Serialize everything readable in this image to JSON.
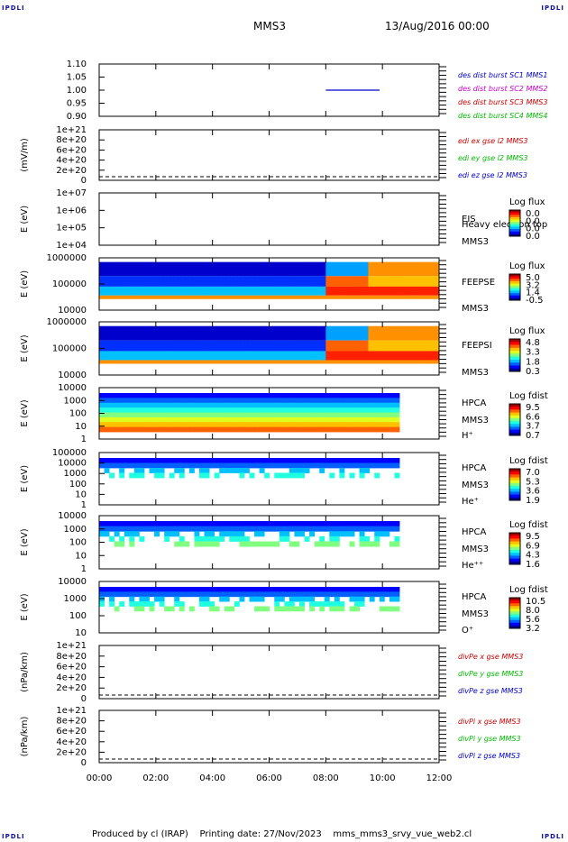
{
  "corners": {
    "tl": "IPDLI",
    "tr": "IPDLI",
    "bl": "IPDLI",
    "br": "IPDLI"
  },
  "header": {
    "spacecraft": "MMS3",
    "datetime": "13/Aug/2016 00:00"
  },
  "footer": {
    "text": "Produced by cl (IRAP)    Printing date: 27/Nov/2023    mms_mms3_srvy_vue_web2.cl"
  },
  "chart_data": [
    {
      "id": "dist",
      "type": "line",
      "ylabel": "",
      "yticks": [
        "1.10",
        "1.05",
        "1.00",
        "0.95",
        "0.90"
      ],
      "ylim": [
        0.9,
        1.1
      ],
      "series": [
        {
          "name": "des dist burst SC1 MMS1",
          "color": "#0000cc",
          "x": [
            8.0,
            9.9
          ],
          "y": [
            1.0,
            1.0
          ]
        },
        {
          "name": "des dist burst SC2 MMS2",
          "color": "#cc00cc",
          "x": [],
          "y": []
        },
        {
          "name": "des dist burst SC3 MMS3",
          "color": "#cc0000",
          "x": [],
          "y": []
        },
        {
          "name": "des dist burst SC4 MMS4",
          "color": "#00bb00",
          "x": [],
          "y": []
        }
      ]
    },
    {
      "id": "edi",
      "type": "line",
      "ylabel": "(mV/m)",
      "yticks": [
        "1e+21",
        "8e+20",
        "6e+20",
        "4e+20",
        "2e+20",
        "0"
      ],
      "series": [
        {
          "name": "edi ex gse l2 MMS3",
          "color": "#cc0000"
        },
        {
          "name": "edi ey gse l2 MMS3",
          "color": "#00bb00"
        },
        {
          "name": "edi ez gse l2 MMS3",
          "color": "#0000cc"
        }
      ]
    },
    {
      "id": "eis",
      "type": "heatmap",
      "ylabel": "E (eV)",
      "yticks": [
        "1e+07",
        "1e+06",
        "1e+05",
        "1e+04"
      ],
      "labels": [
        "EIS",
        "Heavy electron top",
        "MMS3"
      ],
      "colorbar": {
        "title": "Log flux",
        "ticks": [
          "0.0",
          "0.0",
          "0.0",
          "0.0"
        ]
      }
    },
    {
      "id": "feepse",
      "type": "heatmap",
      "ylabel": "E (eV)",
      "yticks": [
        "1000000",
        "100000",
        "10000"
      ],
      "labels": [
        "FEEPSE",
        "MMS3"
      ],
      "colorbar": {
        "title": "Log flux",
        "ticks": [
          "5.0",
          "3.2",
          "1.4",
          "-0.5"
        ]
      }
    },
    {
      "id": "feepsi",
      "type": "heatmap",
      "ylabel": "E (eV)",
      "yticks": [
        "1000000",
        "100000",
        "10000"
      ],
      "labels": [
        "FEEPSI",
        "MMS3"
      ],
      "colorbar": {
        "title": "Log flux",
        "ticks": [
          "4.8",
          "3.3",
          "1.8",
          "0.3"
        ]
      }
    },
    {
      "id": "hpca_h",
      "type": "heatmap",
      "ylabel": "E (eV)",
      "yticks": [
        "10000",
        "1000",
        "100",
        "10",
        "1"
      ],
      "labels": [
        "HPCA",
        "MMS3",
        "H⁺"
      ],
      "colorbar": {
        "title": "Log fdist",
        "ticks": [
          "9.5",
          "6.6",
          "3.7",
          "0.7"
        ]
      }
    },
    {
      "id": "hpca_he",
      "type": "heatmap",
      "ylabel": "E (eV)",
      "yticks": [
        "100000",
        "10000",
        "1000",
        "100",
        "10",
        "1"
      ],
      "labels": [
        "HPCA",
        "MMS3",
        "He⁺"
      ],
      "colorbar": {
        "title": "Log fdist",
        "ticks": [
          "7.0",
          "5.3",
          "3.6",
          "1.9"
        ]
      }
    },
    {
      "id": "hpca_hepp",
      "type": "heatmap",
      "ylabel": "E (eV)",
      "yticks": [
        "10000",
        "1000",
        "100",
        "10",
        "1"
      ],
      "labels": [
        "HPCA",
        "MMS3",
        "He⁺⁺"
      ],
      "colorbar": {
        "title": "Log fdist",
        "ticks": [
          "9.5",
          "6.9",
          "4.3",
          "1.6"
        ]
      }
    },
    {
      "id": "hpca_o",
      "type": "heatmap",
      "ylabel": "E (eV)",
      "yticks": [
        "10000",
        "1000",
        "100",
        "10"
      ],
      "labels": [
        "HPCA",
        "MMS3",
        "O⁺"
      ],
      "colorbar": {
        "title": "Log fdist",
        "ticks": [
          "10.5",
          "8.0",
          "5.6",
          "3.2"
        ]
      }
    },
    {
      "id": "divpe",
      "type": "line",
      "ylabel": "(nPa/km)",
      "yticks": [
        "1e+21",
        "8e+20",
        "6e+20",
        "4e+20",
        "2e+20",
        "0"
      ],
      "series": [
        {
          "name": "divPe x gse MMS3",
          "color": "#cc0000"
        },
        {
          "name": "divPe y gse MMS3",
          "color": "#00bb00"
        },
        {
          "name": "divPe z gse MMS3",
          "color": "#0000cc"
        }
      ]
    },
    {
      "id": "divpi",
      "type": "line",
      "ylabel": "(nPa/km)",
      "yticks": [
        "1e+21",
        "8e+20",
        "6e+20",
        "4e+20",
        "2e+20",
        "0"
      ],
      "series": [
        {
          "name": "divPi x gse MMS3",
          "color": "#cc0000"
        },
        {
          "name": "divPi y gse MMS3",
          "color": "#00bb00"
        },
        {
          "name": "divPi z gse MMS3",
          "color": "#0000cc"
        }
      ]
    }
  ],
  "time_axis": {
    "ticks": [
      "00:00",
      "02:00",
      "04:00",
      "06:00",
      "08:00",
      "10:00",
      "12:00"
    ],
    "range_hours": [
      0,
      12
    ]
  }
}
